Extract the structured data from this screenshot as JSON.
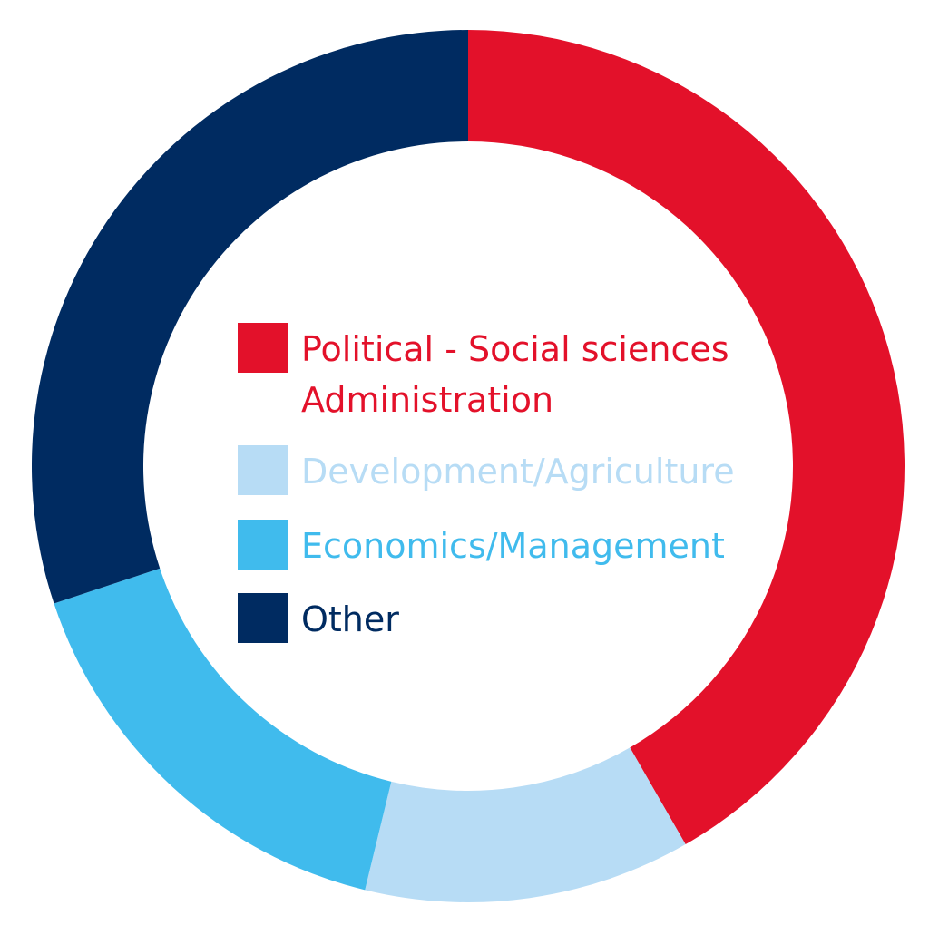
{
  "chart_data": {
    "type": "pie",
    "donut": true,
    "title": "",
    "legend_placement": "center",
    "slices": [
      {
        "label_lines": [
          "Political - Social sciences",
          "Administration"
        ],
        "value": 41.7,
        "color": "#e3112a"
      },
      {
        "label_lines": [
          "Development/Agriculture"
        ],
        "value": 12.1,
        "color": "#b7dcf5"
      },
      {
        "label_lines": [
          "Economics/Management"
        ],
        "value": 16.1,
        "color": "#40bbed"
      },
      {
        "label_lines": [
          "Other"
        ],
        "value": 30.1,
        "color": "#002b61"
      }
    ]
  }
}
